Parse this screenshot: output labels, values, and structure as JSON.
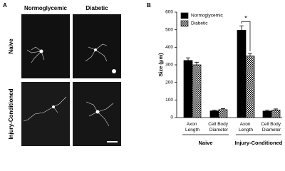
{
  "panel_a": {
    "label": "A",
    "columns": [
      "Normoglycemic",
      "Diabetic"
    ],
    "rows": [
      "Naive",
      "Injury-Conditioned"
    ]
  },
  "chart_data": {
    "type": "bar",
    "panel_label": "B",
    "y_label": "Size (μm)",
    "groups": [
      "Naive",
      "Injury-Conditioned"
    ],
    "categories": [
      "Axon Length",
      "Cell Body Diameter",
      "Axon Length",
      "Cell Body Diameter"
    ],
    "series": [
      {
        "name": "Normoglycemic",
        "color": "#000000",
        "fill_style": "solid",
        "values": [
          325,
          38,
          497,
          37
        ],
        "errors": [
          15,
          5,
          25,
          5
        ]
      },
      {
        "name": "Diabetic",
        "color": "#000000",
        "fill_style": "checker",
        "values": [
          300,
          45,
          350,
          43
        ],
        "errors": [
          15,
          6,
          15,
          6
        ]
      }
    ],
    "ylim": [
      0,
      600
    ],
    "yticks": [
      0,
      100,
      200,
      300,
      400,
      500,
      600
    ],
    "annotations": [
      "*"
    ],
    "legend": "upper-left"
  }
}
